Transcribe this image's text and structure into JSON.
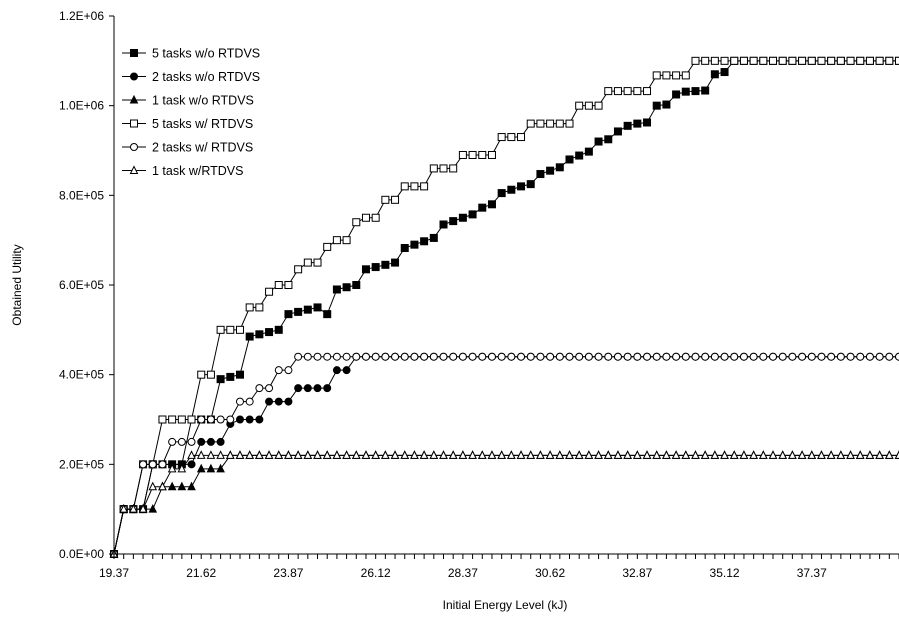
{
  "chart_data": {
    "type": "line",
    "title": "",
    "xlabel": "Initial Energy Level (kJ)",
    "ylabel": "Obtained Utility",
    "xlim": [
      19.37,
      39.62
    ],
    "ylim": [
      0,
      1200000
    ],
    "x_tick_labels": [
      "19.37",
      "21.62",
      "23.87",
      "26.12",
      "28.37",
      "30.62",
      "32.87",
      "35.12",
      "37.37"
    ],
    "y_tick_labels": [
      "0.0E+00",
      "2.0E+05",
      "4.0E+05",
      "6.0E+05",
      "8.0E+05",
      "1.0E+06",
      "1.2E+06"
    ],
    "y_tick_values": [
      0,
      200000,
      400000,
      600000,
      800000,
      1000000,
      1200000
    ],
    "grid": false,
    "legend_position": "top-left",
    "x": [
      19.37,
      19.62,
      19.87,
      20.12,
      20.37,
      20.62,
      20.87,
      21.12,
      21.37,
      21.62,
      21.87,
      22.12,
      22.37,
      22.62,
      22.87,
      23.12,
      23.37,
      23.62,
      23.87,
      24.12,
      24.37,
      24.62,
      24.87,
      25.12,
      25.37,
      25.62,
      25.87,
      26.12,
      26.37,
      26.62,
      26.87,
      27.12,
      27.37,
      27.62,
      27.87,
      28.12,
      28.37,
      28.62,
      28.87,
      29.12,
      29.37,
      29.62,
      29.87,
      30.12,
      30.37,
      30.62,
      30.87,
      31.12,
      31.37,
      31.62,
      31.87,
      32.12,
      32.37,
      32.62,
      32.87,
      33.12,
      33.37,
      33.62,
      33.87,
      34.12,
      34.37,
      34.62,
      34.87,
      35.12,
      35.37,
      35.62,
      35.87,
      36.12,
      36.37,
      36.62,
      36.87,
      37.12,
      37.37,
      37.62,
      37.87,
      38.12,
      38.37,
      38.62,
      38.87,
      39.12,
      39.37,
      39.62
    ],
    "series": [
      {
        "name": "5 tasks w/o RTDVS",
        "marker": "square-filled",
        "values": [
          0,
          100000,
          100000,
          100000,
          200000,
          200000,
          200000,
          200000,
          300000,
          300000,
          300000,
          390000,
          395000,
          400000,
          485000,
          490000,
          495000,
          500000,
          535000,
          540000,
          545000,
          550000,
          535000,
          590000,
          595000,
          600000,
          635000,
          640000,
          645000,
          650000,
          682500,
          690000,
          697500,
          705000,
          735000,
          742500,
          750000,
          757500,
          772500,
          780000,
          805000,
          812500,
          820000,
          825000,
          847500,
          855000,
          862500,
          880000,
          888750,
          897500,
          920000,
          925000,
          942500,
          955000,
          960000,
          962500,
          1000000,
          1002500,
          1025000,
          1031250,
          1032500,
          1033750,
          1070000,
          1075000,
          1100000,
          1100000,
          1100000,
          1100000,
          1100000,
          1100000,
          1100000,
          1100000,
          1100000,
          1100000,
          1100000,
          1100000,
          1100000,
          1100000,
          1100000,
          1100000,
          1100000,
          1100000
        ]
      },
      {
        "name": "2 tasks w/o RTDVS",
        "marker": "circle-filled",
        "values": [
          0,
          100000,
          100000,
          100000,
          200000,
          200000,
          200000,
          200000,
          200000,
          250000,
          250000,
          250000,
          290000,
          300000,
          300000,
          300000,
          340000,
          340000,
          340000,
          370000,
          370000,
          370000,
          370000,
          410000,
          410000,
          440000,
          440000,
          440000,
          440000,
          440000,
          440000,
          440000,
          440000,
          440000,
          440000,
          440000,
          440000,
          440000,
          440000,
          440000,
          440000,
          440000,
          440000,
          440000,
          440000,
          440000,
          440000,
          440000,
          440000,
          440000,
          440000,
          440000,
          440000,
          440000,
          440000,
          440000,
          440000,
          440000,
          440000,
          440000,
          440000,
          440000,
          440000,
          440000,
          440000,
          440000,
          440000,
          440000,
          440000,
          440000,
          440000,
          440000,
          440000,
          440000,
          440000,
          440000,
          440000,
          440000,
          440000,
          440000,
          440000,
          440000
        ]
      },
      {
        "name": "1 task w/o RTDVS",
        "marker": "triangle-filled",
        "values": [
          0,
          100000,
          100000,
          100000,
          100000,
          150000,
          150000,
          150000,
          150000,
          190000,
          190000,
          190000,
          220000,
          220000,
          220000,
          220000,
          220000,
          220000,
          220000,
          220000,
          220000,
          220000,
          220000,
          220000,
          220000,
          220000,
          220000,
          220000,
          220000,
          220000,
          220000,
          220000,
          220000,
          220000,
          220000,
          220000,
          220000,
          220000,
          220000,
          220000,
          220000,
          220000,
          220000,
          220000,
          220000,
          220000,
          220000,
          220000,
          220000,
          220000,
          220000,
          220000,
          220000,
          220000,
          220000,
          220000,
          220000,
          220000,
          220000,
          220000,
          220000,
          220000,
          220000,
          220000,
          220000,
          220000,
          220000,
          220000,
          220000,
          220000,
          220000,
          220000,
          220000,
          220000,
          220000,
          220000,
          220000,
          220000,
          220000,
          220000,
          220000,
          220000
        ]
      },
      {
        "name": "5 tasks w/ RTDVS",
        "marker": "square-open",
        "values": [
          0,
          100000,
          100000,
          200000,
          200000,
          300000,
          300000,
          300000,
          300000,
          400000,
          400000,
          500000,
          500000,
          500000,
          550000,
          550000,
          585000,
          600000,
          600000,
          635000,
          650000,
          650000,
          685000,
          700000,
          700000,
          740000,
          750000,
          750000,
          790000,
          790000,
          820000,
          820000,
          820000,
          860000,
          860000,
          860000,
          890000,
          890000,
          890000,
          890000,
          930000,
          930000,
          930000,
          960000,
          960000,
          960000,
          960000,
          960000,
          1000000,
          1000000,
          1000000,
          1032500,
          1032500,
          1032500,
          1032500,
          1032500,
          1067500,
          1067500,
          1067500,
          1067500,
          1100000,
          1100000,
          1100000,
          1100000,
          1100000,
          1100000,
          1100000,
          1100000,
          1100000,
          1100000,
          1100000,
          1100000,
          1100000,
          1100000,
          1100000,
          1100000,
          1100000,
          1100000,
          1100000,
          1100000,
          1100000,
          1100000
        ]
      },
      {
        "name": "2 tasks w/ RTDVS",
        "marker": "circle-open",
        "values": [
          0,
          100000,
          100000,
          200000,
          200000,
          200000,
          250000,
          250000,
          250000,
          300000,
          300000,
          300000,
          300000,
          340000,
          340000,
          370000,
          370000,
          410000,
          410000,
          440000,
          440000,
          440000,
          440000,
          440000,
          440000,
          440000,
          440000,
          440000,
          440000,
          440000,
          440000,
          440000,
          440000,
          440000,
          440000,
          440000,
          440000,
          440000,
          440000,
          440000,
          440000,
          440000,
          440000,
          440000,
          440000,
          440000,
          440000,
          440000,
          440000,
          440000,
          440000,
          440000,
          440000,
          440000,
          440000,
          440000,
          440000,
          440000,
          440000,
          440000,
          440000,
          440000,
          440000,
          440000,
          440000,
          440000,
          440000,
          440000,
          440000,
          440000,
          440000,
          440000,
          440000,
          440000,
          440000,
          440000,
          440000,
          440000,
          440000,
          440000,
          440000,
          440000
        ]
      },
      {
        "name": "1 task w/RTDVS",
        "marker": "triangle-open",
        "values": [
          0,
          100000,
          100000,
          100000,
          150000,
          150000,
          190000,
          190000,
          220000,
          220000,
          220000,
          220000,
          220000,
          220000,
          220000,
          220000,
          220000,
          220000,
          220000,
          220000,
          220000,
          220000,
          220000,
          220000,
          220000,
          220000,
          220000,
          220000,
          220000,
          220000,
          220000,
          220000,
          220000,
          220000,
          220000,
          220000,
          220000,
          220000,
          220000,
          220000,
          220000,
          220000,
          220000,
          220000,
          220000,
          220000,
          220000,
          220000,
          220000,
          220000,
          220000,
          220000,
          220000,
          220000,
          220000,
          220000,
          220000,
          220000,
          220000,
          220000,
          220000,
          220000,
          220000,
          220000,
          220000,
          220000,
          220000,
          220000,
          220000,
          220000,
          220000,
          220000,
          220000,
          220000,
          220000,
          220000,
          220000,
          220000,
          220000,
          220000,
          220000,
          220000
        ]
      }
    ]
  }
}
